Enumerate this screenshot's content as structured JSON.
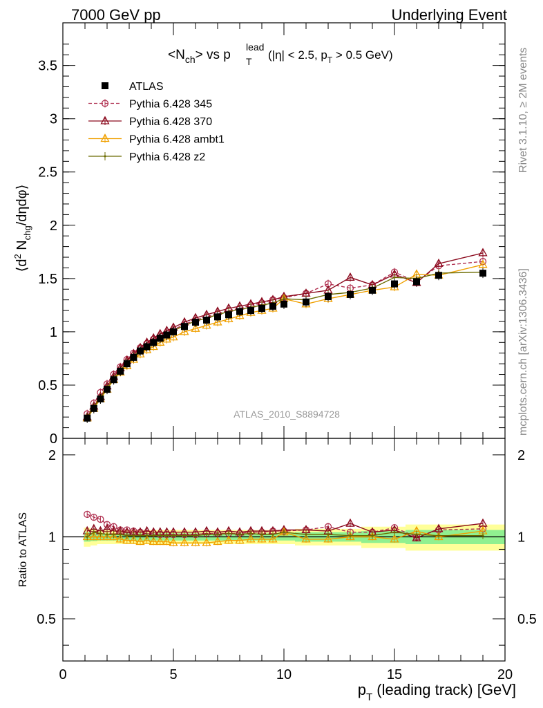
{
  "header": {
    "left": "7000 GeV pp",
    "right": "Underlying Event"
  },
  "side_labels": {
    "rivet": "Rivet 3.1.10, ≥ 2M events",
    "mcplots": "mcplots.cern.ch [arXiv:1306.3436]"
  },
  "watermark": "ATLAS_2010_S8894728",
  "title": {
    "main": "<N",
    "main_sub": "ch",
    "vs": "> vs p",
    "sup": "lead",
    "sub": "T",
    "cut_a": "(|η| < 2.5, p",
    "cut_sub": "T",
    "cut_b": " > 0.5 GeV)"
  },
  "colors": {
    "p345": "#b03050",
    "p370": "#8b0a1e",
    "ambt1": "#f0a000",
    "z2": "#6b6b00",
    "band_inner": "#90f090",
    "band_outer": "#ffff99"
  },
  "chart_data": [
    {
      "type": "line",
      "title": "<Nch> vs pT lead (|η| < 2.5, pT > 0.5 GeV)",
      "ylabel": "⟨d² Nchg/dηdφ⟩",
      "xlim": [
        0,
        20
      ],
      "ylim": [
        0,
        3.9
      ],
      "yticks": [
        0,
        0.5,
        1,
        1.5,
        2,
        2.5,
        3,
        3.5
      ],
      "ytick_labels": [
        "0",
        "0.5",
        "1",
        "1.5",
        "2",
        "2.5",
        "3",
        "3.5"
      ],
      "legend_position": "top-left",
      "x": [
        1.1,
        1.4,
        1.7,
        2.0,
        2.3,
        2.6,
        2.9,
        3.2,
        3.5,
        3.8,
        4.1,
        4.4,
        4.7,
        5.0,
        5.5,
        6.0,
        6.5,
        7.0,
        7.5,
        8.0,
        8.5,
        9.0,
        9.5,
        10.0,
        11.0,
        12.0,
        13.0,
        14.0,
        15.0,
        16.0,
        17.0,
        19.0
      ],
      "series": [
        {
          "name": "ATLAS",
          "values": [
            0.19,
            0.28,
            0.37,
            0.46,
            0.55,
            0.63,
            0.7,
            0.76,
            0.82,
            0.86,
            0.9,
            0.94,
            0.97,
            1.0,
            1.05,
            1.09,
            1.11,
            1.14,
            1.16,
            1.19,
            1.2,
            1.22,
            1.24,
            1.26,
            1.28,
            1.33,
            1.35,
            1.39,
            1.45,
            1.47,
            1.53,
            1.55
          ]
        },
        {
          "name": "Pythia 6.428 345",
          "values": [
            0.23,
            0.33,
            0.43,
            0.51,
            0.6,
            0.67,
            0.74,
            0.8,
            0.85,
            0.89,
            0.93,
            0.96,
            0.99,
            1.02,
            1.07,
            1.11,
            1.14,
            1.17,
            1.2,
            1.22,
            1.25,
            1.27,
            1.3,
            1.32,
            1.36,
            1.45,
            1.41,
            1.44,
            1.56,
            1.47,
            1.62,
            1.66
          ]
        },
        {
          "name": "Pythia 6.428 370",
          "values": [
            0.2,
            0.3,
            0.39,
            0.49,
            0.58,
            0.66,
            0.73,
            0.79,
            0.85,
            0.9,
            0.94,
            0.98,
            1.01,
            1.04,
            1.09,
            1.13,
            1.16,
            1.19,
            1.22,
            1.24,
            1.26,
            1.28,
            1.3,
            1.33,
            1.36,
            1.39,
            1.51,
            1.44,
            1.54,
            1.46,
            1.64,
            1.74
          ]
        },
        {
          "name": "Pythia 6.428 ambt1",
          "values": [
            0.19,
            0.28,
            0.37,
            0.46,
            0.55,
            0.62,
            0.68,
            0.74,
            0.79,
            0.83,
            0.86,
            0.9,
            0.93,
            0.95,
            1.0,
            1.03,
            1.06,
            1.09,
            1.12,
            1.15,
            1.18,
            1.2,
            1.22,
            1.31,
            1.26,
            1.31,
            1.35,
            1.39,
            1.42,
            1.54,
            1.53,
            1.63
          ]
        },
        {
          "name": "Pythia 6.428 z2",
          "values": [
            0.19,
            0.29,
            0.38,
            0.47,
            0.56,
            0.64,
            0.71,
            0.77,
            0.83,
            0.87,
            0.91,
            0.95,
            0.98,
            1.01,
            1.06,
            1.1,
            1.13,
            1.16,
            1.19,
            1.21,
            1.23,
            1.25,
            1.27,
            1.31,
            1.3,
            1.35,
            1.37,
            1.41,
            1.51,
            1.5,
            1.55,
            1.56
          ]
        }
      ]
    },
    {
      "type": "line",
      "ylabel": "Ratio to ATLAS",
      "xlabel": "p_T (leading track) [GeV]",
      "xlim": [
        0,
        20
      ],
      "ylim": [
        0.35,
        2.3
      ],
      "xticks": [
        0,
        5,
        10,
        15,
        20
      ],
      "xtick_labels": [
        "0",
        "5",
        "10",
        "15",
        "20"
      ],
      "yticks": [
        0.5,
        1,
        2
      ],
      "ytick_labels": [
        "0.5",
        "1",
        "2"
      ],
      "reference_line": 1,
      "band_inner_halfwidth": [
        0.04,
        0.035,
        0.03,
        0.03,
        0.03,
        0.03,
        0.03,
        0.03,
        0.03,
        0.03,
        0.03,
        0.03,
        0.03,
        0.03,
        0.03,
        0.03,
        0.03,
        0.03,
        0.03,
        0.03,
        0.03,
        0.03,
        0.03,
        0.03,
        0.04,
        0.04,
        0.04,
        0.05,
        0.05,
        0.06,
        0.06,
        0.06
      ],
      "band_outer_halfwidth": [
        0.08,
        0.07,
        0.06,
        0.06,
        0.06,
        0.06,
        0.06,
        0.06,
        0.06,
        0.06,
        0.06,
        0.06,
        0.06,
        0.06,
        0.06,
        0.06,
        0.06,
        0.06,
        0.06,
        0.06,
        0.06,
        0.06,
        0.06,
        0.06,
        0.07,
        0.07,
        0.07,
        0.09,
        0.09,
        0.11,
        0.11,
        0.11
      ],
      "series": [
        {
          "name": "Pythia 6.428 345",
          "values": [
            1.21,
            1.18,
            1.16,
            1.11,
            1.09,
            1.06,
            1.06,
            1.05,
            1.04,
            1.03,
            1.03,
            1.02,
            1.02,
            1.02,
            1.02,
            1.02,
            1.03,
            1.03,
            1.03,
            1.03,
            1.04,
            1.04,
            1.05,
            1.05,
            1.06,
            1.09,
            1.04,
            1.04,
            1.08,
            1.0,
            1.06,
            1.07
          ]
        },
        {
          "name": "Pythia 6.428 370",
          "values": [
            1.05,
            1.07,
            1.05,
            1.07,
            1.05,
            1.05,
            1.04,
            1.04,
            1.04,
            1.05,
            1.04,
            1.04,
            1.04,
            1.04,
            1.04,
            1.04,
            1.05,
            1.04,
            1.05,
            1.04,
            1.05,
            1.05,
            1.05,
            1.06,
            1.06,
            1.05,
            1.12,
            1.04,
            1.06,
            0.99,
            1.07,
            1.12
          ]
        },
        {
          "name": "Pythia 6.428 ambt1",
          "values": [
            1.0,
            1.0,
            1.0,
            1.0,
            1.0,
            0.98,
            0.97,
            0.97,
            0.96,
            0.97,
            0.96,
            0.96,
            0.96,
            0.95,
            0.95,
            0.95,
            0.95,
            0.96,
            0.97,
            0.97,
            0.98,
            0.98,
            0.98,
            1.04,
            0.98,
            0.98,
            1.0,
            1.0,
            0.98,
            1.05,
            1.0,
            1.05
          ]
        },
        {
          "name": "Pythia 6.428 z2",
          "values": [
            1.0,
            1.04,
            1.03,
            1.02,
            1.02,
            1.02,
            1.01,
            1.01,
            1.01,
            1.01,
            1.01,
            1.01,
            1.01,
            1.01,
            1.01,
            1.01,
            1.02,
            1.02,
            1.03,
            1.02,
            1.03,
            1.02,
            1.02,
            1.04,
            1.02,
            1.02,
            1.01,
            1.01,
            1.04,
            1.02,
            1.01,
            1.01
          ]
        }
      ]
    }
  ]
}
